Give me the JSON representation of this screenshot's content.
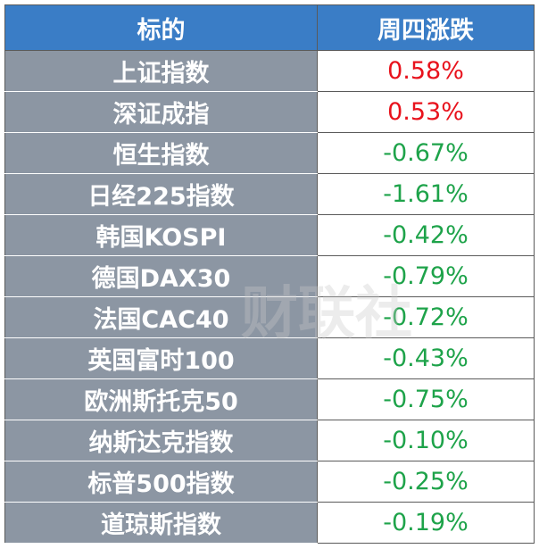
{
  "table": {
    "header": [
      "标的",
      "周四涨跌"
    ],
    "rows": [
      {
        "name": "上证指数",
        "change": "0.58%",
        "color": "#e8121c"
      },
      {
        "name": "深证成指",
        "change": "0.53%",
        "color": "#e8121c"
      },
      {
        "name": "恒生指数",
        "change": "-0.67%",
        "color": "#1ea34a"
      },
      {
        "name": "日经225指数",
        "change": "-1.61%",
        "color": "#1ea34a"
      },
      {
        "name": "韩国KOSPI",
        "change": "-0.42%",
        "color": "#1ea34a"
      },
      {
        "name": "德国DAX30",
        "change": "-0.79%",
        "color": "#1ea34a"
      },
      {
        "name": "法国CAC40",
        "change": "-0.72%",
        "color": "#1ea34a"
      },
      {
        "name": "英国富时100",
        "change": "-0.43%",
        "color": "#1ea34a"
      },
      {
        "name": "欧洲斯托克50",
        "change": "-0.75%",
        "color": "#1ea34a"
      },
      {
        "name": "纳斯达克指数",
        "change": "-0.10%",
        "color": "#1ea34a"
      },
      {
        "name": "标普500指数",
        "change": "-0.25%",
        "color": "#1ea34a"
      },
      {
        "name": "道琼斯指数",
        "change": "-0.19%",
        "color": "#1ea34a"
      }
    ]
  },
  "watermark": "财联社"
}
